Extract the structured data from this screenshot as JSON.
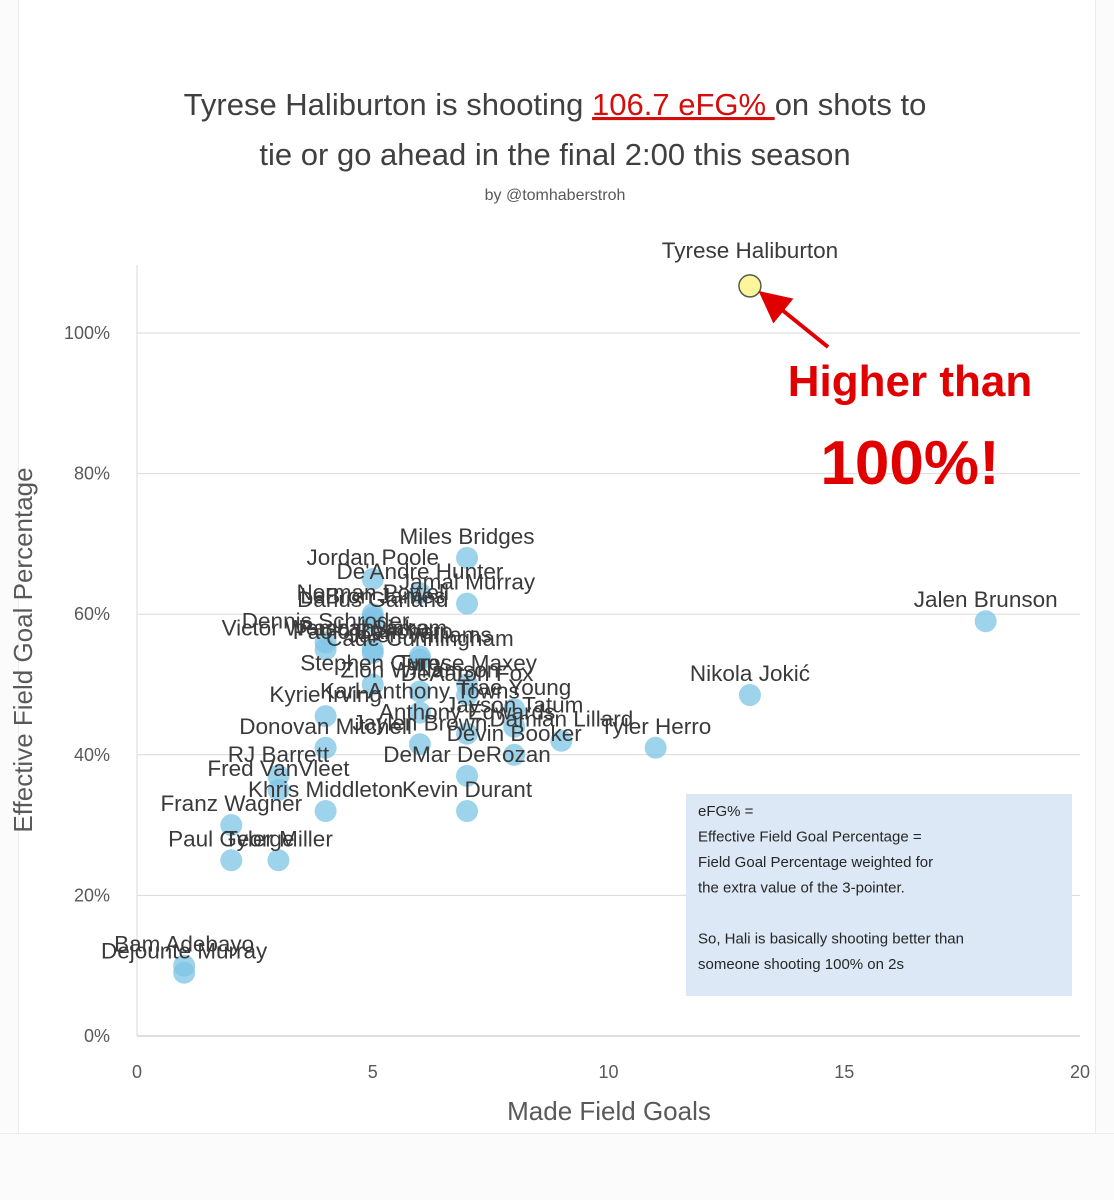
{
  "chart_data": {
    "type": "scatter",
    "title": {
      "before": "Tyrese Haliburton is shooting ",
      "highlight": "106.7 eFG% ",
      "after": "on shots to",
      "line2": "tie or go ahead in the final 2:00 this season"
    },
    "subtitle": "by @tomhaberstroh",
    "xlabel": "Made Field Goals",
    "ylabel": "Effective Field Goal Percentage",
    "xlim": [
      0,
      20
    ],
    "ylim": [
      0,
      100
    ],
    "x_ticks": [
      "0",
      "5",
      "10",
      "15",
      "20"
    ],
    "y_ticks": [
      "0%",
      "20%",
      "40%",
      "60%",
      "80%",
      "100%"
    ],
    "grid": "horizontal",
    "points": [
      {
        "name": "Tyrese Haliburton",
        "x": 13,
        "y": 106.7,
        "highlight": true
      },
      {
        "name": "Jalen Brunson",
        "x": 18,
        "y": 59
      },
      {
        "name": "Nikola Jokić",
        "x": 13,
        "y": 48.5
      },
      {
        "name": "Tyler Herro",
        "x": 11,
        "y": 41
      },
      {
        "name": "Miles Bridges",
        "x": 7,
        "y": 68
      },
      {
        "name": "Jordan Poole",
        "x": 5,
        "y": 65
      },
      {
        "name": "De'Andre Hunter",
        "x": 6,
        "y": 63
      },
      {
        "name": "Jamal Murray",
        "x": 7,
        "y": 61.5
      },
      {
        "name": "Norman Powell",
        "x": 5,
        "y": 60
      },
      {
        "name": "LeBron James",
        "x": 5,
        "y": 59.5
      },
      {
        "name": "Darius Garland",
        "x": 5,
        "y": 59
      },
      {
        "name": "Dennis Schroder",
        "x": 4,
        "y": 56
      },
      {
        "name": "Victor Wembanyama",
        "x": 4,
        "y": 55
      },
      {
        "name": "Pascal Siakam",
        "x": 5,
        "y": 55
      },
      {
        "name": "Paolo Banchero",
        "x": 5,
        "y": 54.5
      },
      {
        "name": "Jalen Williams",
        "x": 6,
        "y": 54
      },
      {
        "name": "Cade Cunningham",
        "x": 6,
        "y": 53.5
      },
      {
        "name": "Tyrese Maxey",
        "x": 7,
        "y": 50
      },
      {
        "name": "Stephen Curry",
        "x": 5,
        "y": 50
      },
      {
        "name": "Zion Williamson",
        "x": 6,
        "y": 49
      },
      {
        "name": "DeAaron Fox",
        "x": 7,
        "y": 48.5
      },
      {
        "name": "Trae Young",
        "x": 8,
        "y": 46.5
      },
      {
        "name": "Kyrie Irving",
        "x": 4,
        "y": 45.5
      },
      {
        "name": "Karl-Anthony Towns",
        "x": 6,
        "y": 46
      },
      {
        "name": "Jayson Tatum",
        "x": 8,
        "y": 44
      },
      {
        "name": "Anthony Edwards",
        "x": 7,
        "y": 43
      },
      {
        "name": "Damian Lillard",
        "x": 9,
        "y": 42
      },
      {
        "name": "Donovan Mitchell",
        "x": 4,
        "y": 41
      },
      {
        "name": "Jaylen Brown",
        "x": 6,
        "y": 41.5
      },
      {
        "name": "Devin Booker",
        "x": 8,
        "y": 40
      },
      {
        "name": "RJ Barrett",
        "x": 3,
        "y": 37
      },
      {
        "name": "DeMar DeRozan",
        "x": 7,
        "y": 37
      },
      {
        "name": "Fred VanVleet",
        "x": 3,
        "y": 35
      },
      {
        "name": "Khris Middleton",
        "x": 4,
        "y": 32
      },
      {
        "name": "Kevin Durant",
        "x": 7,
        "y": 32
      },
      {
        "name": "Franz Wagner",
        "x": 2,
        "y": 30
      },
      {
        "name": "Paul George",
        "x": 2,
        "y": 25
      },
      {
        "name": "Tyler Miller",
        "x": 3,
        "y": 25
      },
      {
        "name": "Bam Adebayo",
        "x": 1,
        "y": 10
      },
      {
        "name": "Dejounte Murray",
        "x": 1,
        "y": 9
      }
    ],
    "annotation": {
      "line1": "Higher than",
      "line2": "100%!",
      "color": "#e00000"
    },
    "note": {
      "lines": [
        "eFG% =",
        "Effective Field Goal Percentage =",
        "Field Goal Percentage weighted for",
        "the extra value of the 3-pointer.",
        "",
        "So, Hali is basically shooting better than",
        "someone shooting 100% on 2s"
      ],
      "background": "#dce8f5"
    },
    "colors": {
      "point": "#7ec4e6",
      "highlight_point": "#fdf59b",
      "highlight_stroke": "#5a5a4a",
      "gridline": "#d9d9d9"
    }
  }
}
